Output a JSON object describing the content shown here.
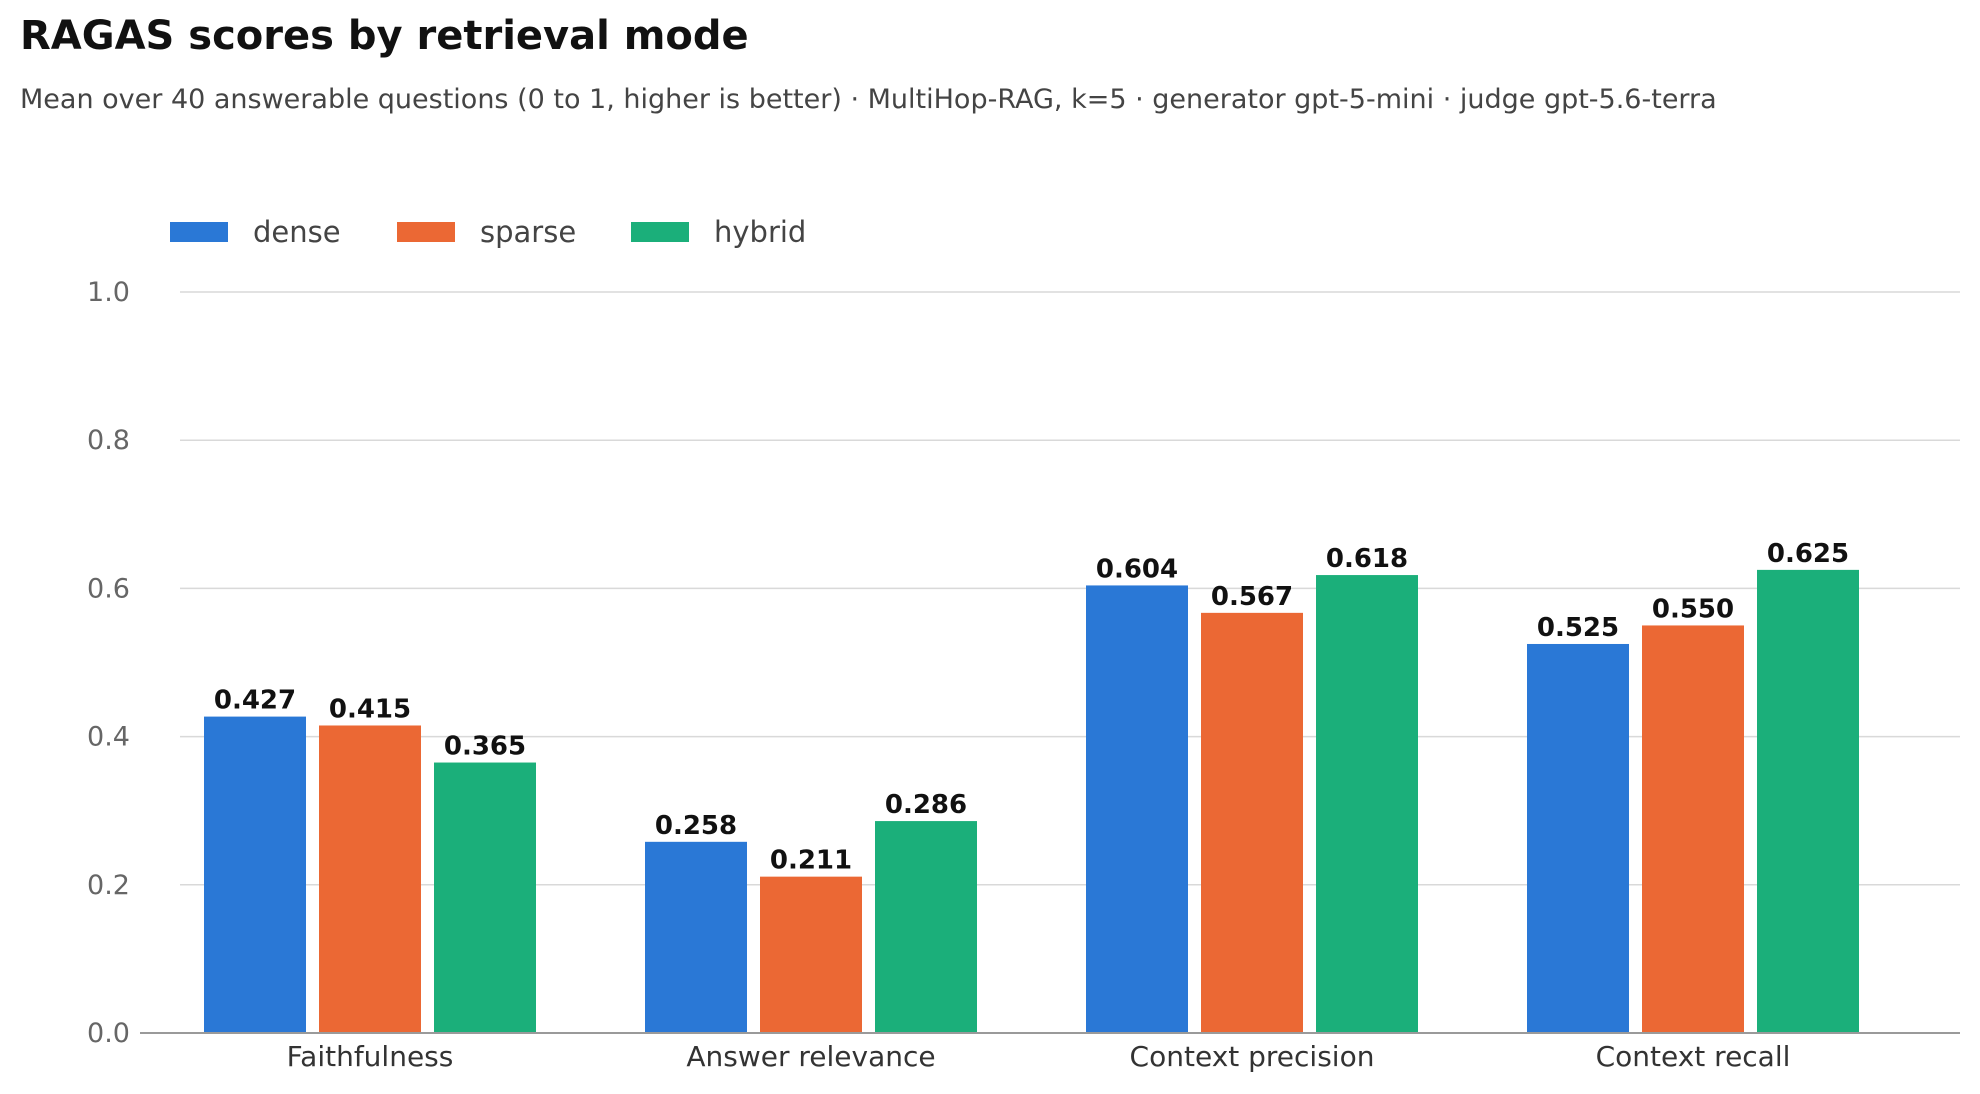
{
  "header": {
    "title": "RAGAS scores by retrieval mode",
    "subtitle": "Mean over 40 answerable questions (0 to 1, higher is better) · MultiHop-RAG, k=5 · generator gpt-5-mini · judge gpt-5.6-terra"
  },
  "chart_data": {
    "type": "bar",
    "title": "RAGAS scores by retrieval mode",
    "subtitle": "Mean over 40 answerable questions (0 to 1, higher is better) · MultiHop-RAG, k=5 · generator gpt-5-mini · judge gpt-5.6-terra",
    "xlabel": "",
    "ylabel": "",
    "categories": [
      "Faithfulness",
      "Answer relevance",
      "Context precision",
      "Context recall"
    ],
    "series": [
      {
        "name": "dense",
        "color": "#2a78d6",
        "values": [
          0.427,
          0.258,
          0.604,
          0.525
        ],
        "labels": [
          "0.427",
          "0.258",
          "0.604",
          "0.525"
        ]
      },
      {
        "name": "sparse",
        "color": "#eb6834",
        "values": [
          0.415,
          0.211,
          0.567,
          0.55
        ],
        "labels": [
          "0.415",
          "0.211",
          "0.567",
          "0.550"
        ]
      },
      {
        "name": "hybrid",
        "color": "#1baf7a",
        "values": [
          0.365,
          0.286,
          0.618,
          0.625
        ],
        "labels": [
          "0.365",
          "0.286",
          "0.618",
          "0.625"
        ]
      }
    ],
    "ylim": [
      0,
      1.0
    ],
    "yticks": [
      "0.0",
      "0.2",
      "0.4",
      "0.6",
      "0.8",
      "1.0"
    ],
    "grid": true,
    "legend": "top-left"
  }
}
